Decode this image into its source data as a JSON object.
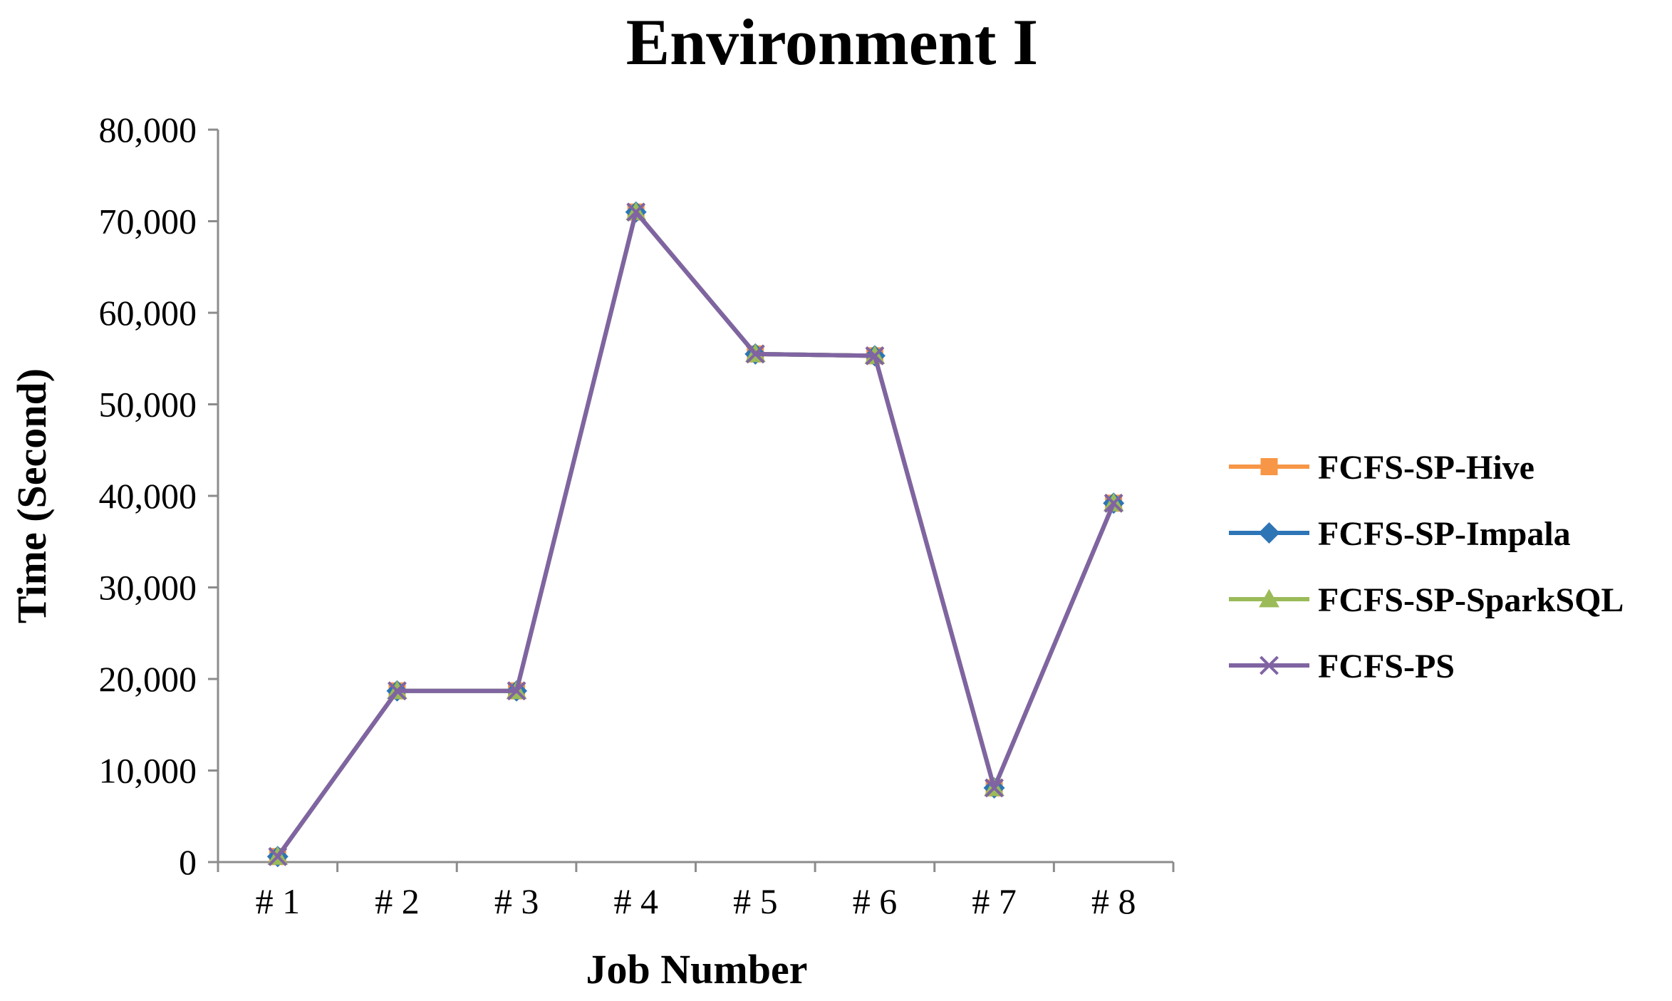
{
  "chart_data": {
    "type": "line",
    "title": "Environment I",
    "xlabel": "Job Number",
    "ylabel": "Time (Second)",
    "categories": [
      "# 1",
      "# 2",
      "# 3",
      "# 4",
      "# 5",
      "# 6",
      "# 7",
      "# 8"
    ],
    "ylim": [
      0,
      80000
    ],
    "yticks": [
      0,
      10000,
      20000,
      30000,
      40000,
      50000,
      60000,
      70000,
      80000
    ],
    "ytick_labels": [
      "0",
      "10,000",
      "20,000",
      "30,000",
      "40,000",
      "50,000",
      "60,000",
      "70,000",
      "80,000"
    ],
    "grid": false,
    "legend_position": "right",
    "series": [
      {
        "name": "FCFS-SP-Hive",
        "color": "#f79646",
        "marker": "square",
        "values": [
          600,
          18700,
          18700,
          71000,
          55500,
          55300,
          8100,
          39200
        ]
      },
      {
        "name": "FCFS-SP-Impala",
        "color": "#2e75b6",
        "marker": "diamond",
        "values": [
          600,
          18700,
          18700,
          71000,
          55500,
          55300,
          8100,
          39200
        ]
      },
      {
        "name": "FCFS-SP-SparkSQL",
        "color": "#9bbb59",
        "marker": "triangle",
        "values": [
          600,
          18700,
          18700,
          71000,
          55500,
          55300,
          8100,
          39200
        ]
      },
      {
        "name": "FCFS-PS",
        "color": "#8064a2",
        "marker": "x",
        "values": [
          600,
          18700,
          18700,
          71000,
          55500,
          55300,
          8100,
          39200
        ]
      }
    ]
  }
}
